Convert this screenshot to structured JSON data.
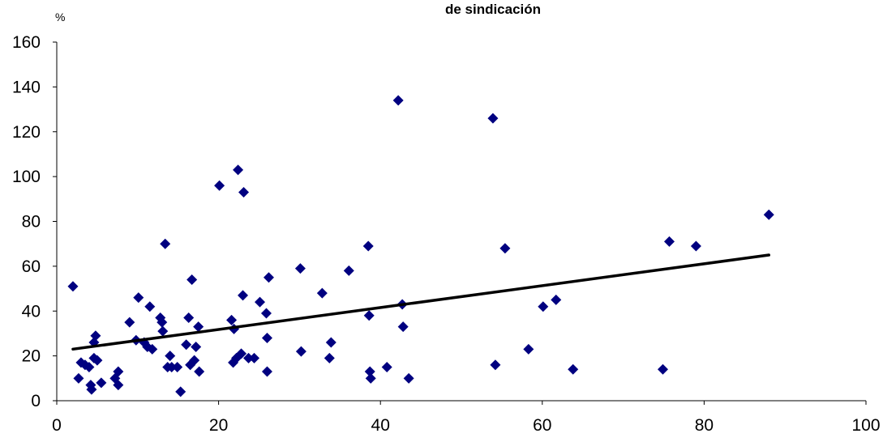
{
  "chart_data": {
    "type": "scatter",
    "title": "de sindicación",
    "ylabel": "%",
    "xlabel": "",
    "xlim": [
      0,
      100
    ],
    "ylim": [
      0,
      160
    ],
    "xticks": [
      0,
      20,
      40,
      60,
      80,
      100
    ],
    "yticks": [
      0,
      20,
      40,
      60,
      80,
      100,
      120,
      140,
      160
    ],
    "grid": false,
    "legend": "none",
    "marker_color": "#000080",
    "trendline_color": "#000000",
    "trendline": {
      "x": [
        2,
        88
      ],
      "y": [
        23,
        65
      ]
    },
    "points": [
      [
        2.0,
        51
      ],
      [
        2.7,
        10
      ],
      [
        3.0,
        17
      ],
      [
        3.5,
        16
      ],
      [
        4.0,
        15
      ],
      [
        4.2,
        7
      ],
      [
        4.3,
        5
      ],
      [
        4.6,
        26
      ],
      [
        4.8,
        29
      ],
      [
        4.6,
        19
      ],
      [
        5.0,
        18
      ],
      [
        5.5,
        8
      ],
      [
        7.2,
        10
      ],
      [
        7.6,
        13
      ],
      [
        7.6,
        7
      ],
      [
        9.0,
        35
      ],
      [
        9.8,
        27
      ],
      [
        10.1,
        46
      ],
      [
        10.8,
        26
      ],
      [
        11.2,
        24
      ],
      [
        11.5,
        42
      ],
      [
        11.8,
        23
      ],
      [
        12.8,
        37
      ],
      [
        13.0,
        35
      ],
      [
        13.1,
        31
      ],
      [
        13.4,
        70
      ],
      [
        13.7,
        15
      ],
      [
        14.0,
        20
      ],
      [
        14.2,
        15
      ],
      [
        14.9,
        15
      ],
      [
        15.3,
        4
      ],
      [
        16.0,
        25
      ],
      [
        16.3,
        37
      ],
      [
        16.5,
        16
      ],
      [
        16.7,
        54
      ],
      [
        17.0,
        18
      ],
      [
        17.2,
        24
      ],
      [
        17.5,
        33
      ],
      [
        17.6,
        13
      ],
      [
        20.1,
        96
      ],
      [
        21.6,
        36
      ],
      [
        21.8,
        17
      ],
      [
        21.9,
        32
      ],
      [
        22.2,
        19
      ],
      [
        22.4,
        103
      ],
      [
        22.8,
        21
      ],
      [
        23.0,
        47
      ],
      [
        23.1,
        93
      ],
      [
        23.7,
        19
      ],
      [
        24.4,
        19
      ],
      [
        25.1,
        44
      ],
      [
        25.9,
        39
      ],
      [
        26.0,
        28
      ],
      [
        26.0,
        13
      ],
      [
        26.2,
        55
      ],
      [
        30.1,
        59
      ],
      [
        30.2,
        22
      ],
      [
        32.8,
        48
      ],
      [
        33.7,
        19
      ],
      [
        33.9,
        26
      ],
      [
        36.1,
        58
      ],
      [
        38.5,
        69
      ],
      [
        38.6,
        38
      ],
      [
        38.7,
        13
      ],
      [
        38.8,
        10
      ],
      [
        40.8,
        15
      ],
      [
        42.2,
        134
      ],
      [
        42.7,
        43
      ],
      [
        42.8,
        33
      ],
      [
        43.5,
        10
      ],
      [
        53.9,
        126
      ],
      [
        54.2,
        16
      ],
      [
        55.4,
        68
      ],
      [
        58.3,
        23
      ],
      [
        60.1,
        42
      ],
      [
        61.7,
        45
      ],
      [
        63.8,
        14
      ],
      [
        74.9,
        14
      ],
      [
        75.7,
        71
      ],
      [
        79.0,
        69
      ],
      [
        88.0,
        83
      ]
    ]
  }
}
